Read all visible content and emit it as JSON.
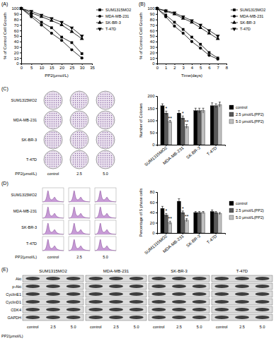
{
  "chart_data": [
    {
      "type": "line",
      "title": "(A)",
      "x_label": "PP2(μmol/L)",
      "y_label": "% of Control Cell Growth",
      "x": [
        0,
        5,
        10,
        15,
        20,
        25,
        30
      ],
      "xlim": [
        0,
        35
      ],
      "xticks": [
        0,
        5,
        10,
        15,
        20,
        25,
        30,
        35
      ],
      "ylim": [
        0,
        100
      ],
      "yticks": [
        0,
        10,
        20,
        30,
        40,
        50,
        60,
        70,
        80,
        90,
        100
      ],
      "legend": "right",
      "series": [
        {
          "name": "SUM1315MO2",
          "color": "#000000",
          "marker": "square",
          "values": [
            100,
            88,
            75,
            65,
            48,
            38,
            18
          ]
        },
        {
          "name": "MDA-MB-231",
          "color": "#000000",
          "marker": "circle",
          "values": [
            100,
            85,
            70,
            55,
            42,
            25,
            10
          ]
        },
        {
          "name": "SK-BR-3",
          "color": "#000000",
          "marker": "triangle-up",
          "values": [
            100,
            92,
            85,
            78,
            70,
            58,
            45
          ]
        },
        {
          "name": "T-47D",
          "color": "#000000",
          "marker": "triangle-down",
          "values": [
            100,
            95,
            88,
            82,
            75,
            65,
            50
          ]
        }
      ]
    },
    {
      "type": "line",
      "title": "(B)",
      "x_label": "Time(days)",
      "y_label": "% of Control Cell Growth",
      "x": [
        0,
        1,
        2,
        3,
        4,
        5,
        6,
        7
      ],
      "xlim": [
        0,
        8
      ],
      "xticks": [
        0,
        1,
        2,
        3,
        4,
        5,
        6,
        7,
        8
      ],
      "ylim": [
        0,
        100
      ],
      "yticks": [
        0,
        10,
        20,
        30,
        40,
        50,
        60,
        70,
        80,
        90,
        100
      ],
      "legend": "right",
      "series": [
        {
          "name": "SUM1315MO2",
          "color": "#000000",
          "marker": "square",
          "values": [
            100,
            88,
            75,
            62,
            48,
            35,
            20,
            10
          ]
        },
        {
          "name": "MDA-MB-231",
          "color": "#000000",
          "marker": "circle",
          "values": [
            100,
            85,
            68,
            55,
            40,
            28,
            15,
            8
          ]
        },
        {
          "name": "SK-BR-3",
          "color": "#000000",
          "marker": "triangle-up",
          "values": [
            100,
            95,
            90,
            82,
            75,
            65,
            55,
            45
          ]
        },
        {
          "name": "T-47D",
          "color": "#000000",
          "marker": "triangle-down",
          "values": [
            100,
            96,
            92,
            85,
            78,
            70,
            60,
            50
          ]
        }
      ]
    },
    {
      "type": "bar",
      "y_label": "Number of Colonies",
      "categories": [
        "SUM1315MO2",
        "MDA-MB-231",
        "SK-BR-3",
        "T-47D"
      ],
      "ylim": [
        0,
        200
      ],
      "yticks": [
        0,
        50,
        100,
        150,
        200
      ],
      "legend": "right",
      "series": [
        {
          "name": "control",
          "color": "#000000",
          "values": [
            160,
            130,
            140,
            160
          ],
          "errors": [
            8,
            10,
            10,
            12
          ],
          "significance": [
            null,
            null,
            null,
            null
          ]
        },
        {
          "name": "2.5 μmol/L(PP2)",
          "color": "#595959",
          "values": [
            130,
            110,
            140,
            160
          ],
          "errors": [
            8,
            8,
            10,
            8
          ],
          "significance": [
            "*",
            "*",
            null,
            null
          ]
        },
        {
          "name": "5.0 μmol/L(PP2)",
          "color": "#bfbfbf",
          "values": [
            95,
            75,
            140,
            165
          ],
          "errors": [
            5,
            8,
            10,
            10
          ],
          "significance": [
            "**",
            "**",
            null,
            null
          ]
        }
      ]
    },
    {
      "type": "bar",
      "y_label": "Percentage of S phase cells",
      "categories": [
        "SUM1315MO2",
        "MDA-MB-231",
        "SK-BR-3",
        "T-47D"
      ],
      "ylim": [
        0,
        80
      ],
      "yticks": [
        0,
        20,
        40,
        60,
        80
      ],
      "legend": "right",
      "series": [
        {
          "name": "control",
          "color": "#000000",
          "values": [
            48,
            62,
            40,
            42
          ],
          "errors": [
            4,
            5,
            2,
            3
          ],
          "significance": [
            null,
            null,
            null,
            null
          ]
        },
        {
          "name": "2.5 μmol/L(PP2)",
          "color": "#595959",
          "values": [
            35,
            40,
            40,
            40
          ],
          "errors": [
            3,
            3,
            2,
            2
          ],
          "significance": [
            "*",
            "*",
            null,
            null
          ]
        },
        {
          "name": "5.0 μmol/L(PP2)",
          "color": "#bfbfbf",
          "values": [
            20,
            25,
            40,
            38
          ],
          "errors": [
            3,
            3,
            2,
            2
          ],
          "significance": [
            "**",
            "**",
            null,
            null
          ]
        }
      ]
    }
  ],
  "colony_assay": {
    "label": "(C)",
    "rows": [
      "SUM1315MO2",
      "MDA-MB-231",
      "SK-BR-3",
      "T-47D"
    ],
    "columns": [
      "control",
      "2.5",
      "5.0"
    ],
    "dose_label": "PP2(μmol/L)"
  },
  "cell_cycle": {
    "label": "(D)",
    "rows": [
      "SUM1315MO2",
      "MDA-MB-231",
      "SK-BR-3",
      "T-47D"
    ],
    "columns": [
      "control",
      "2.5",
      "5.0"
    ],
    "dose_label": "PP2(μmol/L)"
  },
  "western_blot": {
    "label": "(E)",
    "cell_lines": [
      "SUM1315MO2",
      "MDA-MB-231",
      "SK-BR-3",
      "T-47D"
    ],
    "proteins": [
      "Akt",
      "p-Akt",
      "CyclinE1",
      "CyclinD1",
      "CDK4",
      "GAPDH"
    ],
    "columns": [
      "control",
      "2.5",
      "5.0"
    ],
    "dose_label": "PP2(μmol/L)"
  }
}
